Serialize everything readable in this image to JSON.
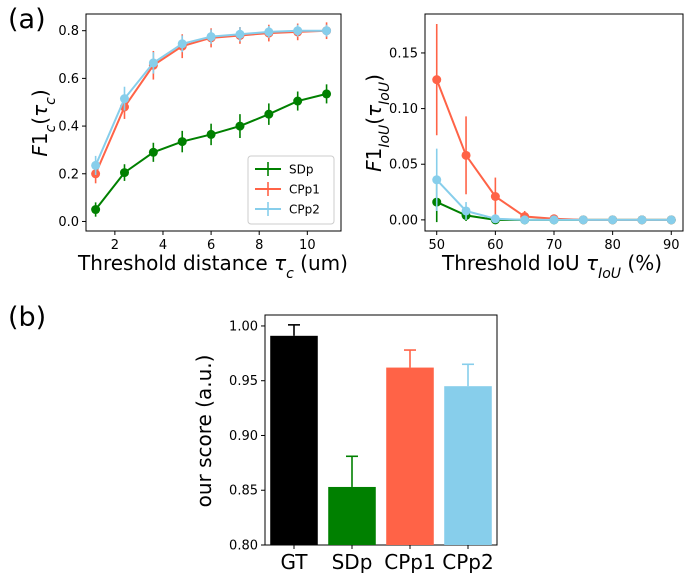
{
  "panels": {
    "a": "(a)",
    "b": "(b)"
  },
  "chart_data": [
    {
      "id": "chart1",
      "type": "line",
      "xlabel": "Threshold distance τ_c (um)",
      "ylabel": "F1_c(τ_c)",
      "xlim": [
        0.8,
        11.4
      ],
      "ylim": [
        -0.04,
        0.87
      ],
      "xticks": [
        2,
        4,
        6,
        8,
        10
      ],
      "yticks": [
        0.0,
        0.2,
        0.4,
        0.6,
        0.8
      ],
      "ytick_labels": [
        "0.0",
        "0.2",
        "0.4",
        "0.6",
        "0.8"
      ],
      "legend_position": "bottom-right",
      "x": [
        1.2,
        2.4,
        3.6,
        4.8,
        6.0,
        7.2,
        8.4,
        9.6,
        10.8
      ],
      "series": [
        {
          "name": "SDp",
          "color": "#008000",
          "values": [
            0.05,
            0.205,
            0.29,
            0.335,
            0.365,
            0.4,
            0.45,
            0.505,
            0.535
          ],
          "err": [
            0.03,
            0.035,
            0.04,
            0.045,
            0.045,
            0.05,
            0.045,
            0.04,
            0.04
          ]
        },
        {
          "name": "CPp1",
          "color": "#FF6347",
          "values": [
            0.2,
            0.48,
            0.655,
            0.735,
            0.77,
            0.78,
            0.79,
            0.795,
            0.8
          ],
          "err": [
            0.04,
            0.05,
            0.06,
            0.05,
            0.04,
            0.035,
            0.035,
            0.035,
            0.035
          ]
        },
        {
          "name": "CPp2",
          "color": "#87CEEB",
          "values": [
            0.235,
            0.515,
            0.665,
            0.745,
            0.775,
            0.785,
            0.795,
            0.8,
            0.8
          ],
          "err": [
            0.04,
            0.05,
            0.045,
            0.035,
            0.03,
            0.03,
            0.025,
            0.025,
            0.025
          ]
        }
      ]
    },
    {
      "id": "chart2",
      "type": "line",
      "xlabel": "Threshold IoU τ_IoU (%)",
      "ylabel": "F1_IoU(τ_IoU)",
      "xlim": [
        48,
        92
      ],
      "ylim": [
        -0.01,
        0.185
      ],
      "xticks": [
        50,
        60,
        70,
        80,
        90
      ],
      "yticks": [
        0.0,
        0.05,
        0.1,
        0.15
      ],
      "ytick_labels": [
        "0.00",
        "0.05",
        "0.10",
        "0.15"
      ],
      "x": [
        50,
        55,
        60,
        65,
        70,
        75,
        80,
        85,
        90
      ],
      "series": [
        {
          "name": "SDp",
          "color": "#008000",
          "values": [
            0.016,
            0.004,
            0.0,
            0.0,
            0.0,
            0.0,
            0.0,
            0.0,
            0.0
          ],
          "err": [
            0.018,
            0.005,
            0.001,
            0,
            0,
            0,
            0,
            0,
            0
          ]
        },
        {
          "name": "CPp1",
          "color": "#FF6347",
          "values": [
            0.126,
            0.058,
            0.021,
            0.003,
            0.001,
            0.0,
            0.0,
            0.0,
            0.0
          ],
          "err": [
            0.05,
            0.035,
            0.017,
            0.005,
            0.002,
            0,
            0,
            0,
            0
          ]
        },
        {
          "name": "CPp2",
          "color": "#87CEEB",
          "values": [
            0.036,
            0.008,
            0.001,
            0.0,
            0.0,
            0.0,
            0.0,
            0.0,
            0.0
          ],
          "err": [
            0.028,
            0.008,
            0.002,
            0,
            0,
            0,
            0,
            0,
            0
          ]
        }
      ]
    },
    {
      "id": "chart3",
      "type": "bar",
      "ylabel": "our score (a.u.)",
      "ylim": [
        0.8,
        1.01
      ],
      "yticks": [
        0.8,
        0.85,
        0.9,
        0.95,
        1.0
      ],
      "ytick_labels": [
        "0.80",
        "0.85",
        "0.90",
        "0.95",
        "1.00"
      ],
      "categories": [
        "GT",
        "SDp",
        "CPp1",
        "CPp2"
      ],
      "values": [
        0.991,
        0.853,
        0.962,
        0.945
      ],
      "err": [
        0.01,
        0.028,
        0.016,
        0.02
      ],
      "colors": [
        "#000000",
        "#008000",
        "#FF6347",
        "#87CEEB"
      ]
    }
  ]
}
